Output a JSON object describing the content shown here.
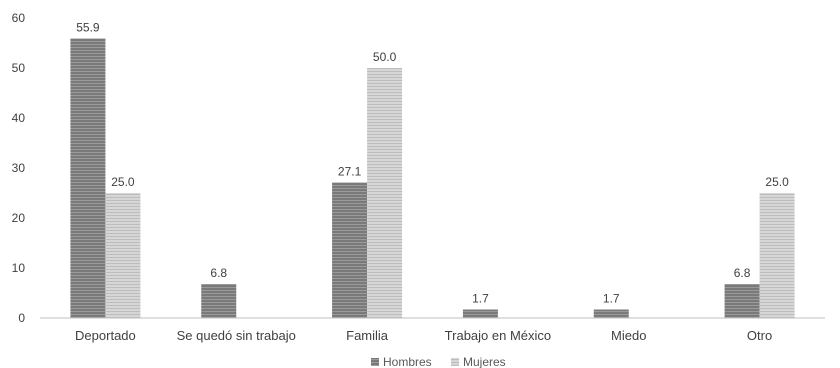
{
  "chart_data": {
    "type": "bar",
    "categories": [
      "Deportado",
      "Se quedó sin trabajo",
      "Familia",
      "Trabajo en México",
      "Miedo",
      "Otro"
    ],
    "series": [
      {
        "name": "Hombres",
        "values": [
          55.9,
          6.8,
          27.1,
          1.7,
          1.7,
          6.8
        ],
        "labels": [
          "55.9",
          "6.8",
          "27.1",
          "1.7",
          "1.7",
          "6.8"
        ],
        "color": "#808080"
      },
      {
        "name": "Mujeres",
        "values": [
          25.0,
          null,
          50.0,
          null,
          null,
          25.0
        ],
        "labels": [
          "25.0",
          null,
          "50.0",
          null,
          null,
          "25.0"
        ],
        "color": "#cfcfcf"
      }
    ],
    "ylim": [
      0,
      60
    ],
    "yticks": [
      "0",
      "10",
      "20",
      "30",
      "40",
      "50",
      "60"
    ],
    "grid": false,
    "legend_position": "bottom-center",
    "title": "",
    "xlabel": "",
    "ylabel": ""
  }
}
